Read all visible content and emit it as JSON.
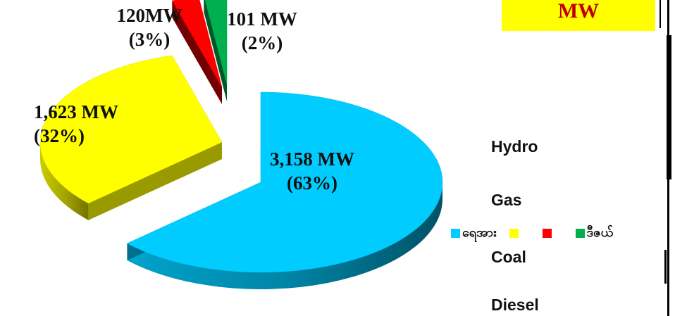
{
  "chart_data": {
    "type": "pie",
    "categories": [
      "Hydro",
      "Gas",
      "Coal",
      "Diesel"
    ],
    "values": [
      3158,
      1623,
      120,
      101
    ],
    "unit": "MW",
    "slice_labels": [
      {
        "value": "3,158 MW",
        "percent": "(63%)"
      },
      {
        "value": "1,623 MW",
        "percent": "(32%)"
      },
      {
        "value": "120MW",
        "percent": "(3%)"
      },
      {
        "value": "101 MW",
        "percent": "(2%)"
      }
    ],
    "colors": [
      "#00ccff",
      "#ffff00",
      "#ff0000",
      "#00b050"
    ],
    "legend": {
      "entries": [
        "Hydro",
        "Gas",
        "Coal",
        "Diesel"
      ],
      "placement": "right",
      "row_text_hydro": "ရေအား",
      "row_text_diesel": "ဒီဇယ်"
    }
  },
  "unit_box": {
    "text": "MW",
    "background": "#ffff00",
    "color": "#c00000"
  }
}
